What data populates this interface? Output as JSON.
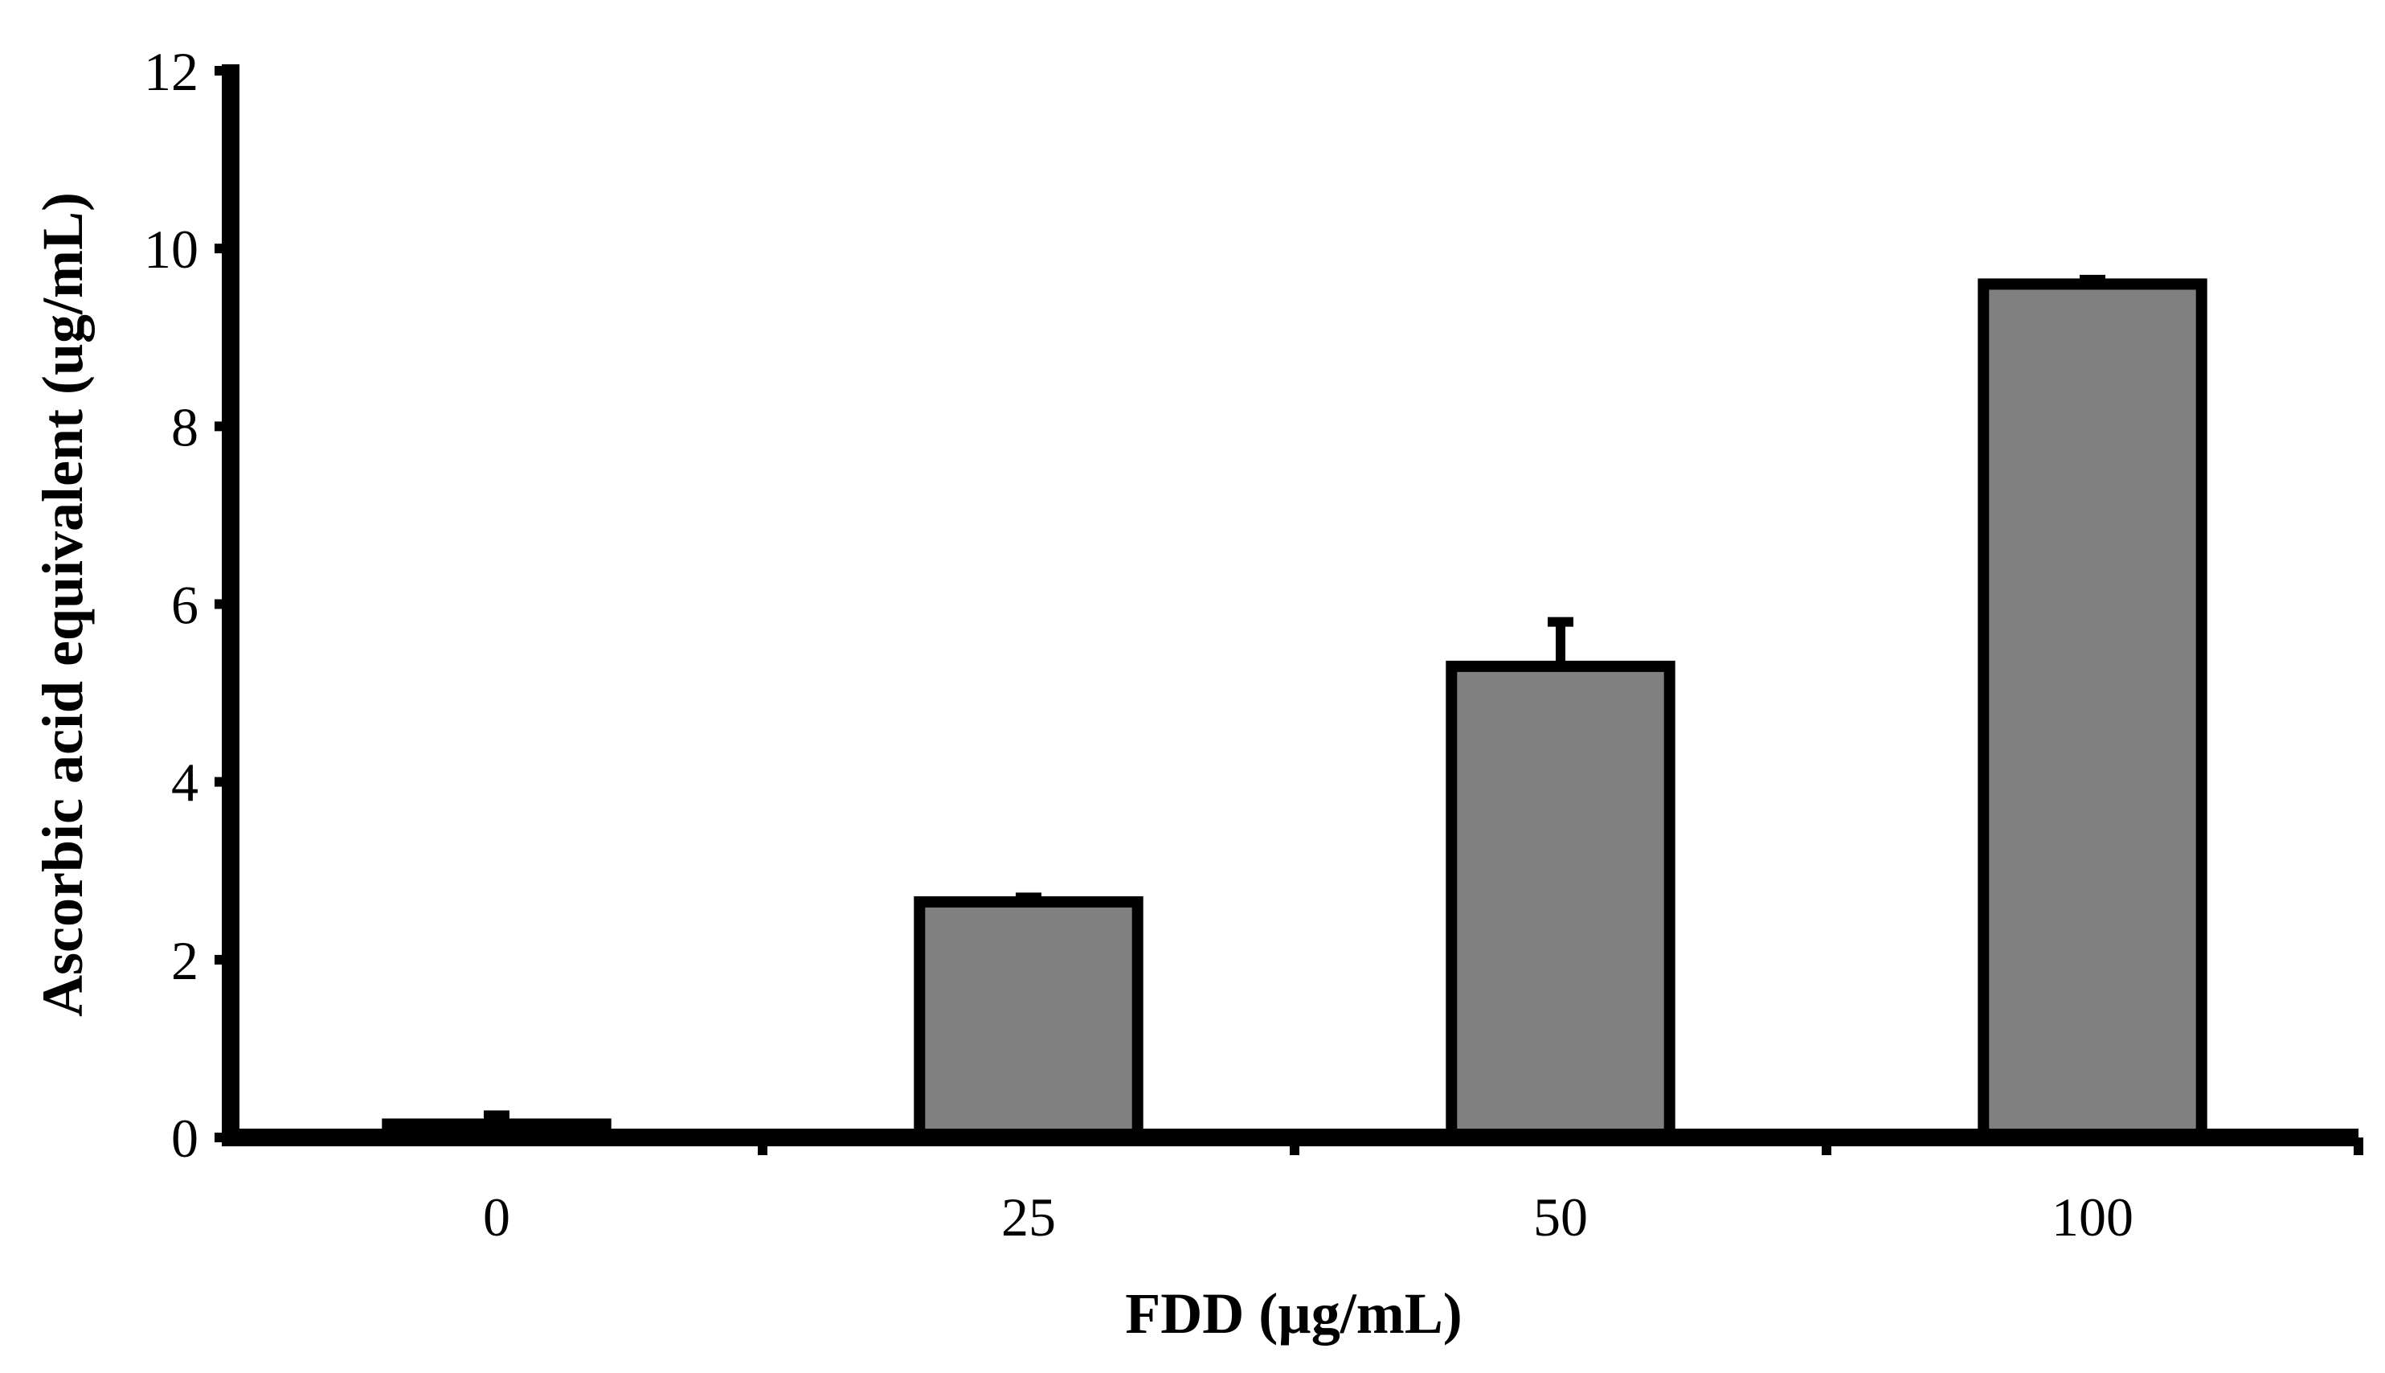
{
  "chart_data": {
    "type": "bar",
    "title": "",
    "xlabel": "FDD (µg/mL)",
    "ylabel": "Ascorbic acid equivalent (ug/mL)",
    "categories": [
      "0",
      "25",
      "50",
      "100"
    ],
    "values": [
      0.15,
      2.65,
      5.3,
      9.6
    ],
    "error_plus": [
      0.1,
      0.05,
      0.5,
      0.05
    ],
    "ylim": [
      0,
      12
    ],
    "yticks": [
      "0",
      "2",
      "4",
      "6",
      "8",
      "10",
      "12"
    ],
    "grid": false,
    "legend": "none",
    "bar_color": "#808080",
    "edge_color": "#000000"
  }
}
